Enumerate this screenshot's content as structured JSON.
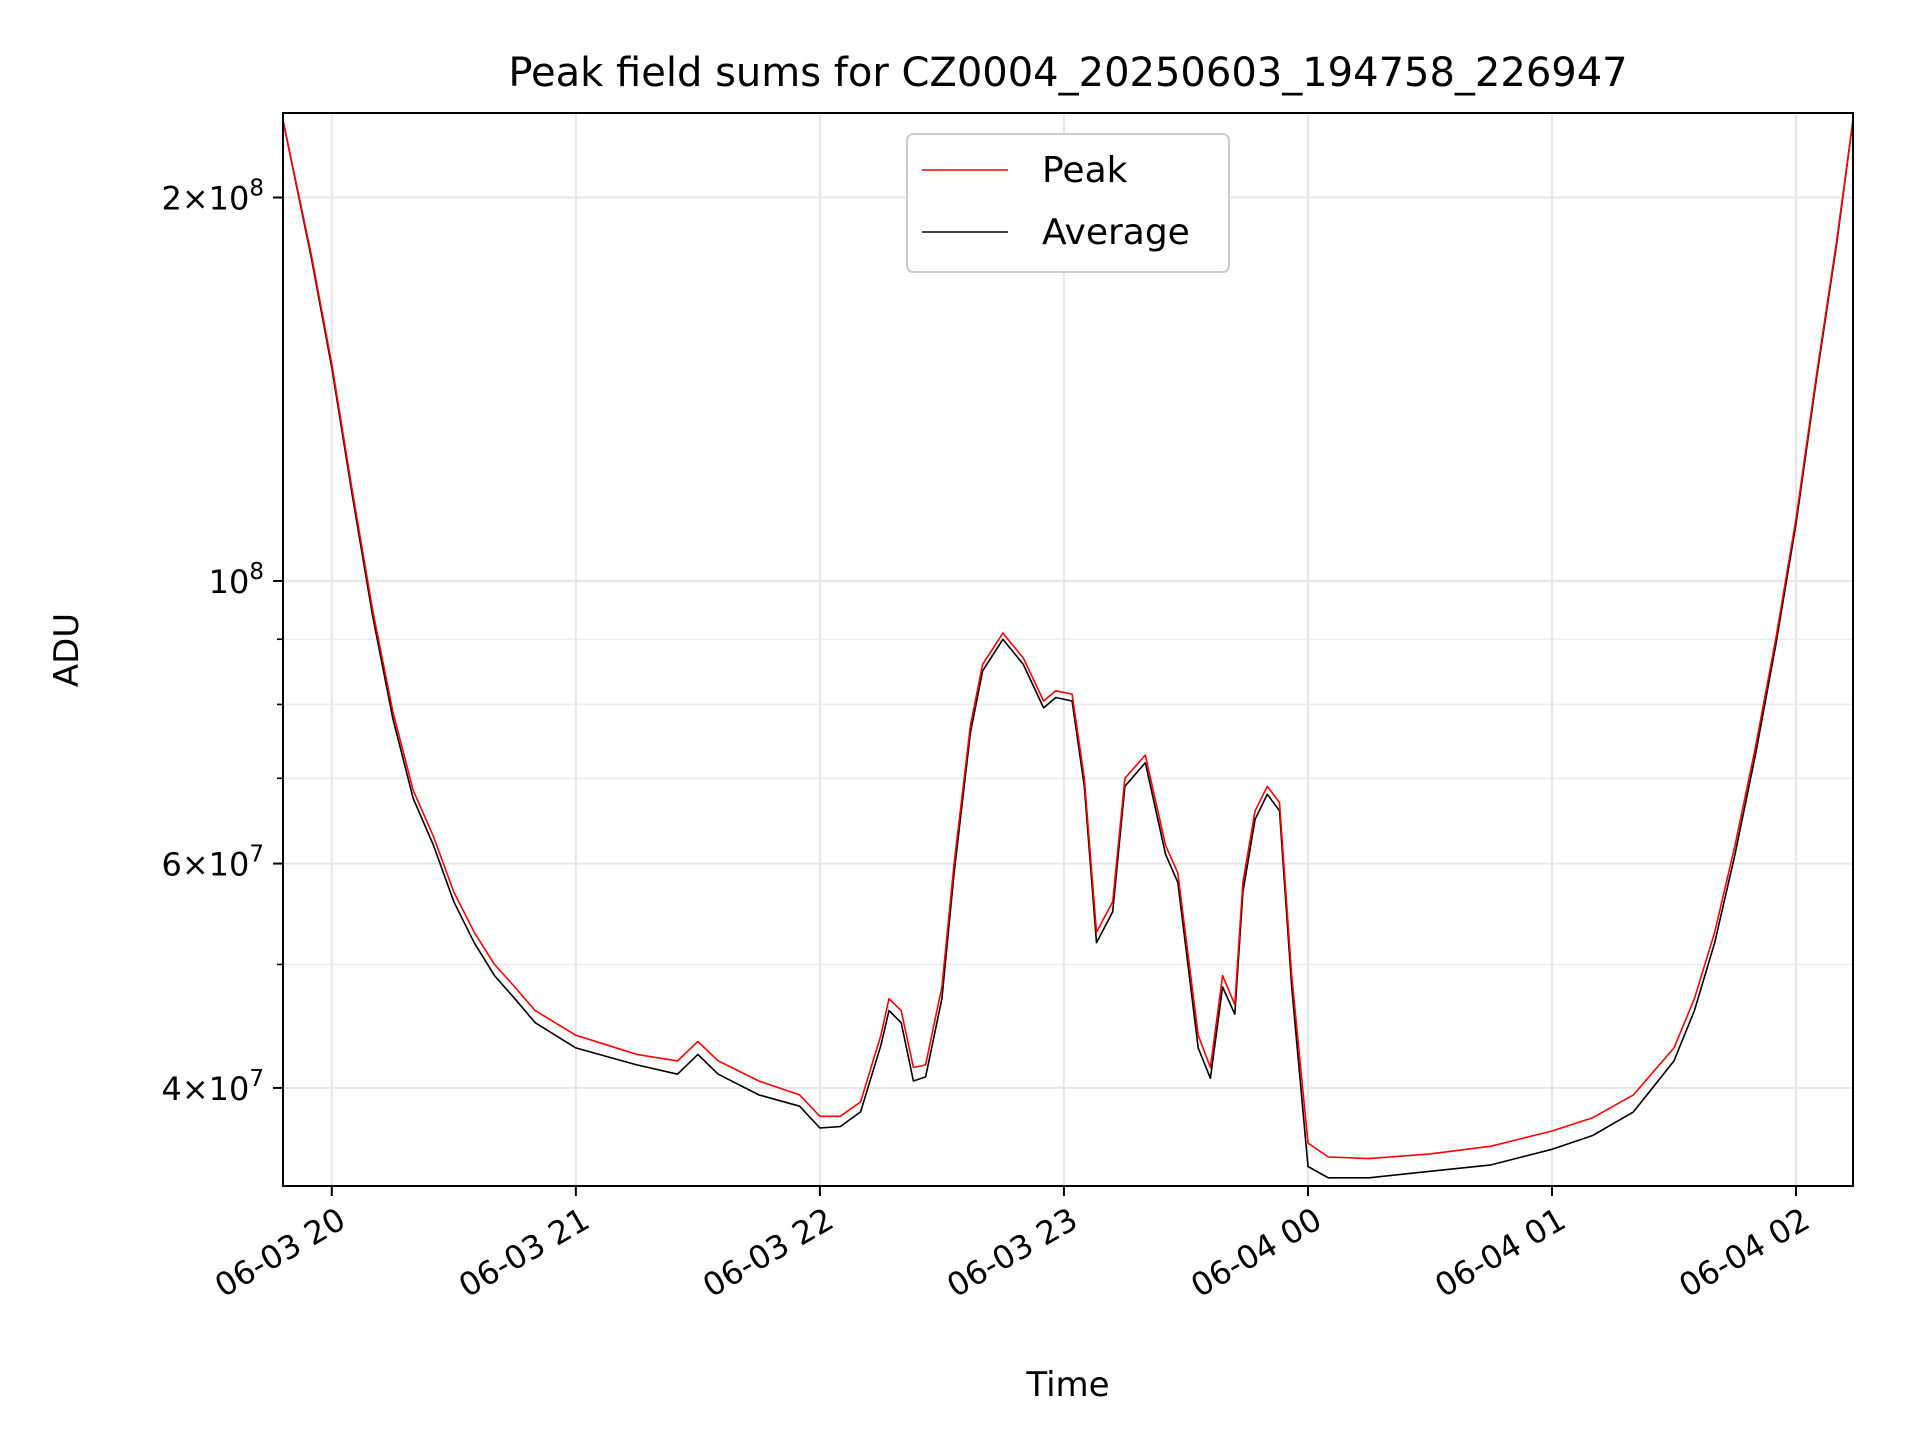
{
  "chart_data": {
    "type": "line",
    "title": "Peak field sums for CZ0004_20250603_194758_226947",
    "xlabel": "Time",
    "ylabel": "ADU",
    "y_scale": "log",
    "ylim": [
      33500000,
      233000000
    ],
    "xlim": [
      "2025-06-03 19:48",
      "2025-06-04 02:14"
    ],
    "grid": true,
    "legend_position": "top-center",
    "x_ticks": [
      "06-03 20",
      "06-03 21",
      "06-03 22",
      "06-03 23",
      "06-04 00",
      "06-04 01",
      "06-04 02"
    ],
    "y_major_ticks": [
      {
        "label_base": "2×10",
        "label_exp": "8",
        "value": 200000000
      },
      {
        "label_base": "10",
        "label_exp": "8",
        "value": 100000000
      },
      {
        "label_base": "6×10",
        "label_exp": "7",
        "value": 60000000
      },
      {
        "label_base": "4×10",
        "label_exp": "7",
        "value": 40000000
      }
    ],
    "series": [
      {
        "name": "Peak",
        "color": "#ff0000",
        "x": [
          "2025-06-03 19:48",
          "2025-06-03 19:55",
          "2025-06-03 20:00",
          "2025-06-03 20:05",
          "2025-06-03 20:10",
          "2025-06-03 20:15",
          "2025-06-03 20:20",
          "2025-06-03 20:25",
          "2025-06-03 20:30",
          "2025-06-03 20:35",
          "2025-06-03 20:40",
          "2025-06-03 20:45",
          "2025-06-03 20:50",
          "2025-06-03 21:00",
          "2025-06-03 21:15",
          "2025-06-03 21:25",
          "2025-06-03 21:30",
          "2025-06-03 21:35",
          "2025-06-03 21:45",
          "2025-06-03 21:55",
          "2025-06-03 22:00",
          "2025-06-03 22:05",
          "2025-06-03 22:10",
          "2025-06-03 22:15",
          "2025-06-03 22:17",
          "2025-06-03 22:20",
          "2025-06-03 22:23",
          "2025-06-03 22:26",
          "2025-06-03 22:30",
          "2025-06-03 22:33",
          "2025-06-03 22:37",
          "2025-06-03 22:40",
          "2025-06-03 22:45",
          "2025-06-03 22:50",
          "2025-06-03 22:55",
          "2025-06-03 22:58",
          "2025-06-03 23:02",
          "2025-06-03 23:05",
          "2025-06-03 23:08",
          "2025-06-03 23:12",
          "2025-06-03 23:15",
          "2025-06-03 23:20",
          "2025-06-03 23:25",
          "2025-06-03 23:28",
          "2025-06-03 23:33",
          "2025-06-03 23:36",
          "2025-06-03 23:39",
          "2025-06-03 23:42",
          "2025-06-03 23:44",
          "2025-06-03 23:47",
          "2025-06-03 23:50",
          "2025-06-03 23:53",
          "2025-06-03 23:56",
          "2025-06-04 00:00",
          "2025-06-04 00:05",
          "2025-06-04 00:15",
          "2025-06-04 00:30",
          "2025-06-04 00:45",
          "2025-06-04 01:00",
          "2025-06-04 01:10",
          "2025-06-04 01:20",
          "2025-06-04 01:30",
          "2025-06-04 01:35",
          "2025-06-04 01:40",
          "2025-06-04 01:45",
          "2025-06-04 01:50",
          "2025-06-04 01:55",
          "2025-06-04 02:00",
          "2025-06-04 02:05",
          "2025-06-04 02:10",
          "2025-06-04 02:14"
        ],
        "values": [
          230000000,
          180000000,
          148000000,
          118000000,
          95000000,
          79000000,
          68500000,
          63000000,
          57000000,
          53000000,
          50000000,
          48000000,
          46000000,
          44000000,
          42500000,
          42000000,
          43500000,
          42000000,
          40500000,
          39500000,
          38000000,
          38000000,
          39000000,
          44000000,
          47000000,
          46000000,
          41500000,
          41700000,
          48000000,
          60000000,
          77000000,
          86000000,
          91000000,
          87000000,
          80500000,
          82000000,
          81500000,
          70000000,
          53000000,
          56000000,
          70000000,
          73000000,
          62000000,
          59000000,
          44000000,
          41500000,
          49000000,
          46500000,
          58000000,
          66000000,
          69000000,
          67000000,
          49000000,
          36200000,
          35300000,
          35200000,
          35500000,
          36000000,
          37000000,
          37900000,
          39500000,
          43000000,
          47000000,
          53000000,
          62000000,
          74000000,
          90000000,
          112000000,
          145000000,
          185000000,
          230000000
        ]
      },
      {
        "name": "Average",
        "color": "#000000",
        "x": [
          "2025-06-03 19:48",
          "2025-06-03 19:55",
          "2025-06-03 20:00",
          "2025-06-03 20:05",
          "2025-06-03 20:10",
          "2025-06-03 20:15",
          "2025-06-03 20:20",
          "2025-06-03 20:25",
          "2025-06-03 20:30",
          "2025-06-03 20:35",
          "2025-06-03 20:40",
          "2025-06-03 20:45",
          "2025-06-03 20:50",
          "2025-06-03 21:00",
          "2025-06-03 21:15",
          "2025-06-03 21:25",
          "2025-06-03 21:30",
          "2025-06-03 21:35",
          "2025-06-03 21:45",
          "2025-06-03 21:55",
          "2025-06-03 22:00",
          "2025-06-03 22:05",
          "2025-06-03 22:10",
          "2025-06-03 22:15",
          "2025-06-03 22:17",
          "2025-06-03 22:20",
          "2025-06-03 22:23",
          "2025-06-03 22:26",
          "2025-06-03 22:30",
          "2025-06-03 22:33",
          "2025-06-03 22:37",
          "2025-06-03 22:40",
          "2025-06-03 22:45",
          "2025-06-03 22:50",
          "2025-06-03 22:55",
          "2025-06-03 22:58",
          "2025-06-03 23:02",
          "2025-06-03 23:05",
          "2025-06-03 23:08",
          "2025-06-03 23:12",
          "2025-06-03 23:15",
          "2025-06-03 23:20",
          "2025-06-03 23:25",
          "2025-06-03 23:28",
          "2025-06-03 23:33",
          "2025-06-03 23:36",
          "2025-06-03 23:39",
          "2025-06-03 23:42",
          "2025-06-03 23:44",
          "2025-06-03 23:47",
          "2025-06-03 23:50",
          "2025-06-03 23:53",
          "2025-06-03 23:56",
          "2025-06-04 00:00",
          "2025-06-04 00:05",
          "2025-06-04 00:15",
          "2025-06-04 00:30",
          "2025-06-04 00:45",
          "2025-06-04 01:00",
          "2025-06-04 01:10",
          "2025-06-04 01:20",
          "2025-06-04 01:30",
          "2025-06-04 01:35",
          "2025-06-04 01:40",
          "2025-06-04 01:45",
          "2025-06-04 01:50",
          "2025-06-04 01:55",
          "2025-06-04 02:00",
          "2025-06-04 02:05",
          "2025-06-04 02:10",
          "2025-06-04 02:14"
        ],
        "values": [
          230000000,
          179000000,
          147000000,
          117000000,
          94000000,
          78000000,
          67500000,
          62000000,
          56000000,
          52000000,
          49000000,
          47000000,
          45000000,
          43000000,
          41700000,
          41000000,
          42500000,
          41000000,
          39500000,
          38700000,
          37200000,
          37300000,
          38300000,
          43200000,
          46000000,
          45000000,
          40500000,
          40800000,
          47000000,
          59000000,
          76000000,
          85000000,
          90000000,
          86000000,
          79500000,
          81000000,
          80500000,
          69000000,
          52000000,
          55000000,
          69000000,
          72000000,
          61000000,
          58000000,
          43000000,
          40700000,
          48000000,
          45700000,
          57000000,
          65000000,
          68000000,
          66000000,
          48000000,
          34700000,
          34000000,
          34000000,
          34400000,
          34800000,
          35800000,
          36700000,
          38300000,
          42000000,
          46000000,
          52000000,
          61000000,
          73000000,
          89000000,
          111000000,
          144000000,
          184000000,
          230000000
        ]
      }
    ]
  }
}
